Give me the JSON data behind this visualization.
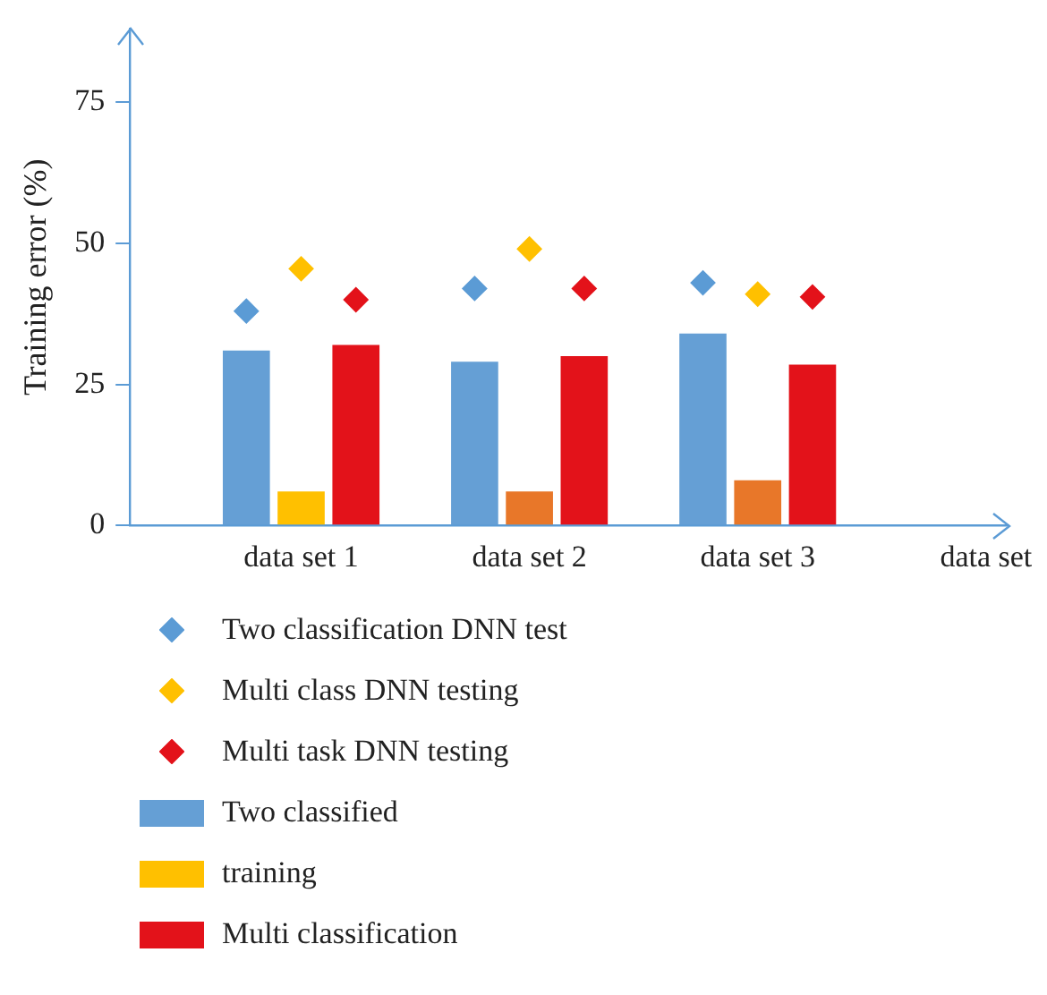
{
  "chart_data": {
    "type": "bar",
    "ylabel": "Training error (%)",
    "categories": [
      "data set 1",
      "data set 2",
      "data set 3",
      "data set"
    ],
    "series": [
      {
        "name": "Two classification DNN test",
        "type": "scatter",
        "color": "#5b9bd5",
        "values": [
          38,
          42,
          43,
          null
        ]
      },
      {
        "name": "Multi class DNN testing",
        "type": "scatter",
        "color": "#ffc000",
        "values": [
          45.5,
          49,
          41,
          null
        ]
      },
      {
        "name": "Multi task DNN testing",
        "type": "scatter",
        "color": "#e3121a",
        "values": [
          40,
          42,
          40.5,
          null
        ]
      },
      {
        "name": "Two classified",
        "color": "#659fd5",
        "values": [
          31,
          29,
          34,
          null
        ]
      },
      {
        "name": "training",
        "color": "#ffc000",
        "colors": [
          "#ffc000",
          "#e87729",
          "#e87729",
          null
        ],
        "values": [
          6,
          6,
          8,
          null
        ]
      },
      {
        "name": "Multi classification",
        "color": "#e3121a",
        "values": [
          32,
          30,
          28.5,
          null
        ]
      }
    ],
    "ylim": [
      0,
      88
    ],
    "yticks": [
      0,
      25,
      50,
      75
    ],
    "grid": false,
    "legend": "bottom",
    "marker": "diamond"
  }
}
